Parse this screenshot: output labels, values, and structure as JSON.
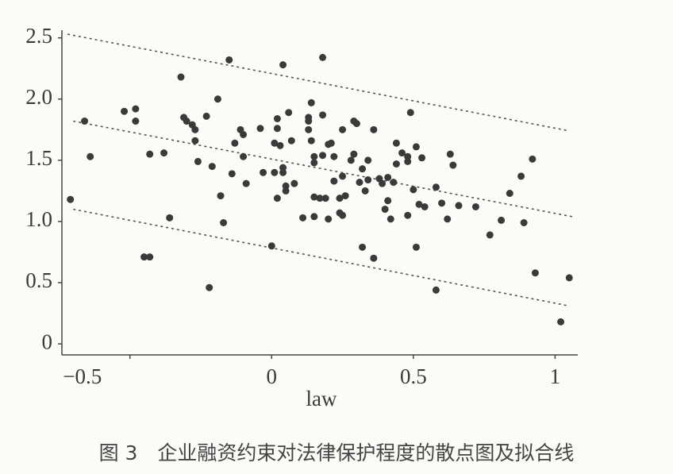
{
  "chart_data": {
    "type": "scatter",
    "xlabel": "law",
    "caption": "图 3　企业融资约束对法律保护程度的散点图及拟合线",
    "color": "#3a3a3a",
    "line_color": "#555555",
    "xlim": [
      -0.74,
      1.08
    ],
    "ylim": [
      -0.09,
      2.55
    ],
    "xticks": [
      {
        "value": -0.5,
        "label": "−0.5"
      },
      0,
      0.5,
      1
    ],
    "yticks": [
      0,
      0.5,
      {
        "value": 1,
        "label": "1.0"
      },
      1.5,
      {
        "value": 2,
        "label": "2.0"
      },
      2.5
    ],
    "x": [
      -0.71,
      -0.66,
      -0.64,
      -0.52,
      -0.48,
      -0.48,
      -0.43,
      -0.45,
      -0.43,
      -0.38,
      -0.36,
      -0.32,
      -0.31,
      -0.3,
      -0.28,
      -0.27,
      -0.27,
      -0.26,
      -0.23,
      -0.22,
      -0.21,
      -0.19,
      -0.18,
      -0.17,
      -0.15,
      -0.14,
      -0.13,
      -0.11,
      -0.1,
      -0.1,
      -0.09,
      -0.04,
      -0.03,
      0.0,
      0.01,
      0.01,
      0.02,
      0.02,
      0.02,
      0.03,
      0.04,
      0.04,
      0.04,
      0.05,
      0.05,
      0.06,
      0.07,
      0.08,
      0.11,
      0.13,
      0.13,
      0.13,
      0.14,
      0.14,
      0.15,
      0.15,
      0.15,
      0.15,
      0.17,
      0.18,
      0.18,
      0.18,
      0.19,
      0.2,
      0.2,
      0.21,
      0.22,
      0.22,
      0.24,
      0.24,
      0.25,
      0.25,
      0.25,
      0.26,
      0.28,
      0.29,
      0.29,
      0.3,
      0.31,
      0.32,
      0.32,
      0.33,
      0.34,
      0.34,
      0.36,
      0.36,
      0.38,
      0.39,
      0.4,
      0.41,
      0.41,
      0.42,
      0.43,
      0.44,
      0.44,
      0.46,
      0.48,
      0.48,
      0.48,
      0.49,
      0.5,
      0.51,
      0.51,
      0.52,
      0.53,
      0.54,
      0.58,
      0.58,
      0.6,
      0.62,
      0.63,
      0.64,
      0.66,
      0.72,
      0.77,
      0.81,
      0.84,
      0.88,
      0.89,
      0.92,
      0.93,
      1.02,
      1.05
    ],
    "y": [
      1.18,
      1.82,
      1.53,
      1.9,
      1.92,
      1.82,
      1.55,
      0.71,
      0.71,
      1.56,
      1.03,
      2.18,
      1.85,
      1.82,
      1.79,
      1.75,
      1.66,
      1.49,
      1.86,
      0.46,
      1.45,
      2.0,
      1.21,
      0.99,
      2.32,
      1.39,
      1.64,
      1.75,
      1.53,
      1.71,
      1.31,
      1.76,
      1.4,
      0.8,
      1.64,
      1.4,
      1.76,
      1.84,
      1.19,
      1.62,
      2.28,
      1.44,
      1.4,
      1.29,
      1.25,
      1.89,
      1.66,
      1.31,
      1.03,
      1.75,
      1.82,
      1.85,
      1.97,
      1.66,
      1.53,
      1.48,
      1.2,
      1.04,
      1.19,
      1.87,
      2.34,
      1.54,
      1.19,
      1.63,
      1.02,
      1.64,
      1.33,
      1.53,
      1.19,
      1.07,
      1.75,
      1.05,
      1.37,
      1.21,
      1.5,
      1.55,
      1.82,
      1.8,
      1.32,
      0.79,
      1.43,
      1.25,
      1.34,
      1.5,
      0.7,
      1.75,
      1.35,
      1.31,
      1.1,
      1.36,
      1.17,
      1.02,
      1.32,
      1.64,
      1.47,
      1.56,
      1.53,
      1.49,
      1.05,
      1.89,
      1.26,
      1.61,
      0.79,
      1.14,
      1.52,
      1.12,
      1.28,
      0.44,
      1.15,
      1.02,
      1.55,
      1.46,
      1.13,
      1.12,
      0.89,
      1.01,
      1.23,
      1.37,
      0.99,
      1.51,
      0.58,
      0.18,
      0.54
    ],
    "fit_lines": [
      {
        "x": [
          -0.72,
          1.05
        ],
        "y": [
          2.53,
          1.74
        ]
      },
      {
        "x": [
          -0.7,
          1.06
        ],
        "y": [
          1.82,
          1.04
        ]
      },
      {
        "x": [
          -0.7,
          1.05
        ],
        "y": [
          1.1,
          0.31
        ]
      }
    ]
  }
}
